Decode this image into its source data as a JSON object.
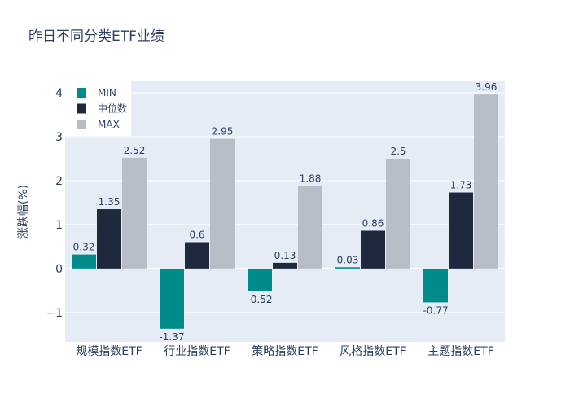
{
  "chart_data": {
    "type": "bar",
    "title": "昨日不同分类ETF业绩",
    "xlabel": "",
    "ylabel": "涨跌幅(%)",
    "ylim": [
      -1.67,
      4.26
    ],
    "yticks": [
      -1,
      0,
      1,
      2,
      3,
      4
    ],
    "ytick_labels": [
      "−1",
      "0",
      "1",
      "2",
      "3",
      "4"
    ],
    "grid": true,
    "legend_position": "top-left",
    "categories": [
      "规模指数ETF",
      "行业指数ETF",
      "策略指数ETF",
      "风格指数ETF",
      "主题指数ETF"
    ],
    "series": [
      {
        "name": "MIN",
        "color": "#008b8b",
        "values": [
          0.32,
          -1.37,
          -0.52,
          0.03,
          -0.77
        ],
        "labels": [
          "0.32",
          "-1.37",
          "-0.52",
          "0.03",
          "-0.77"
        ]
      },
      {
        "name": "中位数",
        "color": "#1e293d",
        "values": [
          1.35,
          0.6,
          0.13,
          0.86,
          1.73
        ],
        "labels": [
          "1.35",
          "0.6",
          "0.13",
          "0.86",
          "1.73"
        ]
      },
      {
        "name": "MAX",
        "color": "#b8bec7",
        "values": [
          2.52,
          2.95,
          1.88,
          2.5,
          3.96
        ],
        "labels": [
          "2.52",
          "2.95",
          "1.88",
          "2.5",
          "3.96"
        ]
      }
    ]
  }
}
